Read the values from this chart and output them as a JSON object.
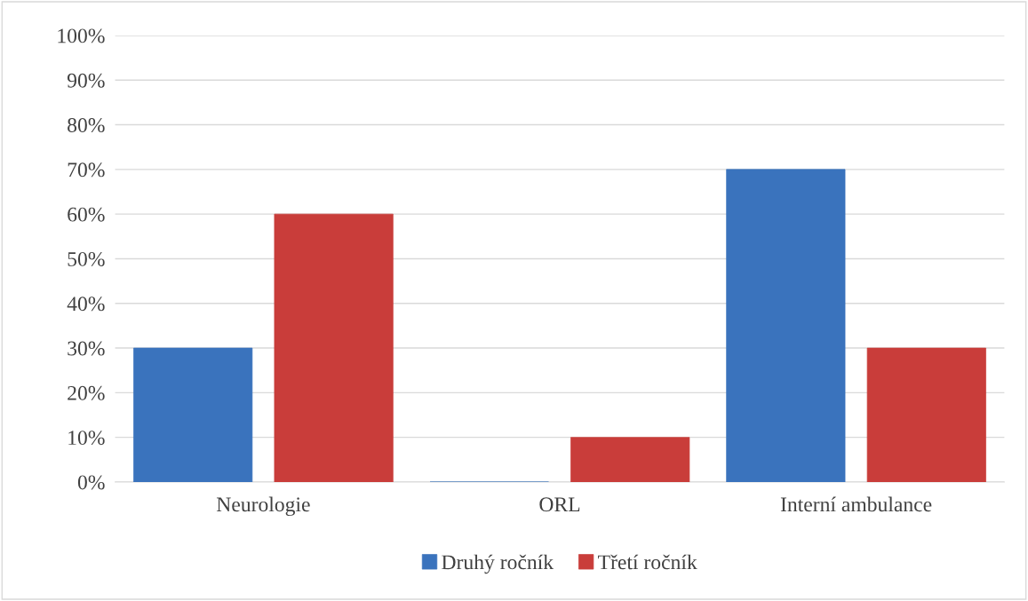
{
  "chart_data": {
    "type": "bar",
    "categories": [
      "Neurologie",
      "ORL",
      "Interní ambulance"
    ],
    "series": [
      {
        "name": "Druhý ročník",
        "color": "#3a73bd",
        "values": [
          30,
          0,
          70
        ]
      },
      {
        "name": "Třetí ročník",
        "color": "#c93d3a",
        "values": [
          60,
          10,
          30
        ]
      }
    ],
    "ylim": [
      0,
      100
    ],
    "yticks": [
      {
        "value": 0,
        "label": "0%"
      },
      {
        "value": 10,
        "label": "10%"
      },
      {
        "value": 20,
        "label": "20%"
      },
      {
        "value": 30,
        "label": "30%"
      },
      {
        "value": 40,
        "label": "40%"
      },
      {
        "value": 50,
        "label": "50%"
      },
      {
        "value": 60,
        "label": "60%"
      },
      {
        "value": 70,
        "label": "70%"
      },
      {
        "value": 80,
        "label": "80%"
      },
      {
        "value": 90,
        "label": "90%"
      },
      {
        "value": 100,
        "label": "100%"
      }
    ],
    "grid": "y",
    "legend": "bottom"
  }
}
